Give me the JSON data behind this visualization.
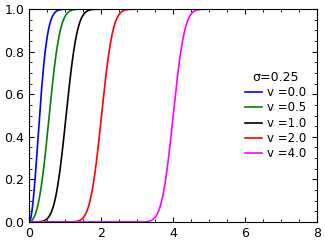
{
  "title": "σ=0.25",
  "sigma": 0.25,
  "nu_values": [
    0.0,
    0.5,
    1.0,
    2.0,
    4.0
  ],
  "nu_labels": [
    "v =0.0",
    "v =0.5",
    "v =1.0",
    "v =2.0",
    "v =4.0"
  ],
  "colors": [
    "blue",
    "green",
    "black",
    "red",
    "magenta"
  ],
  "x_min": 0.0,
  "x_max": 8.0,
  "y_min": 0.0,
  "y_max": 1.0,
  "xticks": [
    0,
    2,
    4,
    6,
    8
  ],
  "yticks": [
    0.0,
    0.2,
    0.4,
    0.6,
    0.8,
    1.0
  ],
  "legend_title": "σ=0.25",
  "figsize": [
    3.25,
    2.44
  ],
  "dpi": 100
}
